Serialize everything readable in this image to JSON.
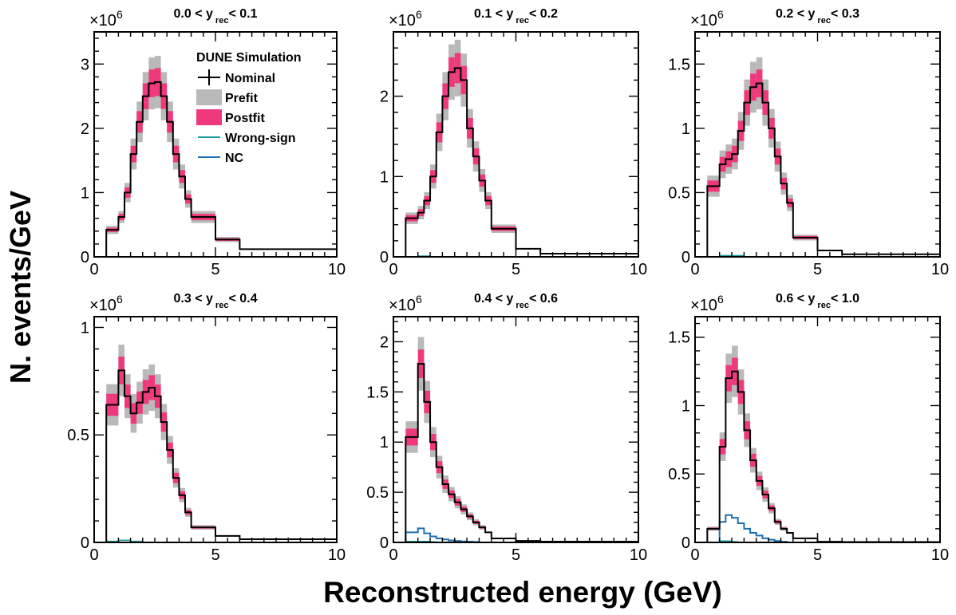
{
  "figure": {
    "ylabel": "N. events/GeV",
    "xlabel": "Reconstructed energy (GeV)",
    "exponent_base": "×10",
    "exponent_power": "6"
  },
  "legend": {
    "title": "DUNE Simulation",
    "entries": [
      {
        "label": "Nominal",
        "kind": "marker",
        "color": "#000000"
      },
      {
        "label": "Prefit",
        "kind": "box",
        "color": "#b9b9b9"
      },
      {
        "label": "Postfit",
        "kind": "box",
        "color": "#ee3a7c"
      },
      {
        "label": "Wrong-sign",
        "kind": "line",
        "color": "#1a9e9e"
      },
      {
        "label": "NC",
        "kind": "line",
        "color": "#1f6fb0"
      }
    ]
  },
  "colors": {
    "nominal": "#000000",
    "prefit": "#b9b9b9",
    "postfit": "#ee3a7c",
    "wrong_sign": "#1a9e9e",
    "nc": "#1f6fb0"
  },
  "chart_data": [
    {
      "type": "line",
      "title_pre": "0.0 < y",
      "title_sub": "rec",
      "title_post": "< 0.1",
      "xlim": [
        0,
        10
      ],
      "ylim": [
        0,
        3.5
      ],
      "xticks": [
        "0",
        "5",
        "10"
      ],
      "xtick_values": [
        0,
        5,
        10
      ],
      "yticks": [
        "0",
        "1",
        "2",
        "3"
      ],
      "ytick_values": [
        0,
        1,
        2,
        3
      ],
      "bin_edges": [
        0.5,
        1.0,
        1.25,
        1.5,
        1.75,
        2.0,
        2.25,
        2.5,
        2.75,
        3.0,
        3.25,
        3.5,
        3.75,
        4.0,
        5.0,
        6.0,
        10.0
      ],
      "nominal": [
        0.42,
        0.62,
        1.0,
        1.6,
        2.1,
        2.5,
        2.7,
        2.72,
        2.5,
        2.1,
        1.6,
        1.25,
        0.9,
        0.62,
        0.27,
        0.12
      ],
      "wrong_sign": [
        0,
        0,
        0,
        0,
        0,
        0,
        0,
        0,
        0,
        0,
        0,
        0,
        0,
        0,
        0,
        0
      ],
      "nc": [
        0,
        0,
        0,
        0,
        0,
        0,
        0,
        0,
        0,
        0,
        0,
        0,
        0,
        0,
        0,
        0
      ]
    },
    {
      "type": "line",
      "title_pre": "0.1 < y",
      "title_sub": "rec",
      "title_post": "< 0.2",
      "xlim": [
        0,
        10
      ],
      "ylim": [
        0,
        2.8
      ],
      "xticks": [
        "0",
        "5",
        "10"
      ],
      "xtick_values": [
        0,
        5,
        10
      ],
      "yticks": [
        "0",
        "1",
        "2"
      ],
      "ytick_values": [
        0,
        1,
        2
      ],
      "bin_edges": [
        0.5,
        1.0,
        1.25,
        1.5,
        1.75,
        2.0,
        2.25,
        2.5,
        2.75,
        3.0,
        3.25,
        3.5,
        3.75,
        4.0,
        5.0,
        6.0,
        10.0
      ],
      "nominal": [
        0.48,
        0.55,
        0.7,
        1.0,
        1.55,
        2.0,
        2.3,
        2.35,
        2.2,
        1.6,
        1.25,
        0.95,
        0.7,
        0.35,
        0.1,
        0.04
      ],
      "wrong_sign": [
        0,
        0.01,
        0.01,
        0,
        0,
        0,
        0,
        0,
        0,
        0,
        0,
        0,
        0,
        0,
        0,
        0
      ],
      "nc": [
        0,
        0,
        0,
        0,
        0,
        0,
        0,
        0,
        0,
        0,
        0,
        0,
        0,
        0,
        0,
        0
      ]
    },
    {
      "type": "line",
      "title_pre": "0.2 < y",
      "title_sub": "rec",
      "title_post": "< 0.3",
      "xlim": [
        0,
        10
      ],
      "ylim": [
        0,
        1.75
      ],
      "xticks": [
        "0",
        "5",
        "10"
      ],
      "xtick_values": [
        0,
        5,
        10
      ],
      "yticks": [
        "0",
        "0.5",
        "1",
        "1.5"
      ],
      "ytick_values": [
        0,
        0.5,
        1,
        1.5
      ],
      "bin_edges": [
        0.5,
        1.0,
        1.25,
        1.5,
        1.75,
        2.0,
        2.25,
        2.5,
        2.75,
        3.0,
        3.25,
        3.5,
        3.75,
        4.0,
        5.0,
        6.0,
        10.0
      ],
      "nominal": [
        0.55,
        0.72,
        0.76,
        0.8,
        0.98,
        1.2,
        1.32,
        1.35,
        1.2,
        1.0,
        0.78,
        0.57,
        0.42,
        0.15,
        0.05,
        0.02
      ],
      "wrong_sign": [
        0,
        0.01,
        0.01,
        0.01,
        0.01,
        0,
        0,
        0,
        0,
        0,
        0,
        0,
        0,
        0,
        0,
        0
      ],
      "nc": [
        0,
        0,
        0,
        0,
        0,
        0,
        0,
        0,
        0,
        0,
        0,
        0,
        0,
        0,
        0,
        0
      ]
    },
    {
      "type": "line",
      "title_pre": "0.3 < y",
      "title_sub": "rec",
      "title_post": "< 0.4",
      "xlim": [
        0,
        10
      ],
      "ylim": [
        0,
        1.05
      ],
      "xticks": [
        "0",
        "5",
        "10"
      ],
      "xtick_values": [
        0,
        5,
        10
      ],
      "yticks": [
        "0",
        "0.5",
        "1"
      ],
      "ytick_values": [
        0,
        0.5,
        1
      ],
      "bin_edges": [
        0.5,
        1.0,
        1.25,
        1.5,
        1.75,
        2.0,
        2.25,
        2.5,
        2.75,
        3.0,
        3.25,
        3.5,
        3.75,
        4.0,
        5.0,
        6.0,
        10.0
      ],
      "nominal": [
        0.64,
        0.8,
        0.68,
        0.6,
        0.65,
        0.7,
        0.72,
        0.68,
        0.56,
        0.43,
        0.3,
        0.22,
        0.14,
        0.07,
        0.03,
        0.015
      ],
      "wrong_sign": [
        0.005,
        0.01,
        0.01,
        0.005,
        0.005,
        0,
        0,
        0,
        0,
        0,
        0,
        0,
        0,
        0,
        0,
        0
      ],
      "nc": [
        0,
        0,
        0,
        0,
        0,
        0,
        0,
        0,
        0,
        0,
        0,
        0,
        0,
        0,
        0,
        0
      ]
    },
    {
      "type": "line",
      "title_pre": "0.4 < y",
      "title_sub": "rec",
      "title_post": "< 0.6",
      "xlim": [
        0,
        10
      ],
      "ylim": [
        0,
        2.25
      ],
      "xticks": [
        "0",
        "5",
        "10"
      ],
      "xtick_values": [
        0,
        5,
        10
      ],
      "yticks": [
        "0",
        "0.5",
        "1",
        "1.5",
        "2"
      ],
      "ytick_values": [
        0,
        0.5,
        1,
        1.5,
        2
      ],
      "bin_edges": [
        0.5,
        1.0,
        1.25,
        1.5,
        1.75,
        2.0,
        2.25,
        2.5,
        2.75,
        3.0,
        3.25,
        3.5,
        3.75,
        4.0,
        5.0,
        6.0,
        10.0
      ],
      "nominal": [
        1.05,
        1.78,
        1.4,
        1.0,
        0.75,
        0.58,
        0.48,
        0.4,
        0.33,
        0.26,
        0.2,
        0.15,
        0.1,
        0.04,
        0.015,
        0.008
      ],
      "wrong_sign": [
        0.01,
        0.01,
        0.01,
        0.005,
        0,
        0,
        0,
        0,
        0,
        0,
        0,
        0,
        0,
        0,
        0,
        0
      ],
      "nc": [
        0.1,
        0.14,
        0.09,
        0.06,
        0.04,
        0.03,
        0.02,
        0.015,
        0.01,
        0.008,
        0.005,
        0,
        0,
        0,
        0,
        0
      ]
    },
    {
      "type": "line",
      "title_pre": "0.6 < y",
      "title_sub": "rec",
      "title_post": "< 1.0",
      "xlim": [
        0,
        10
      ],
      "ylim": [
        0,
        1.65
      ],
      "xticks": [
        "0",
        "5",
        "10"
      ],
      "xtick_values": [
        0,
        5,
        10
      ],
      "yticks": [
        "0",
        "0.5",
        "1",
        "1.5"
      ],
      "ytick_values": [
        0,
        0.5,
        1,
        1.5
      ],
      "bin_edges": [
        0.5,
        1.0,
        1.25,
        1.5,
        1.75,
        2.0,
        2.25,
        2.5,
        2.75,
        3.0,
        3.25,
        3.5,
        3.75,
        4.0,
        5.0,
        6.0,
        10.0
      ],
      "nominal": [
        0.1,
        0.7,
        1.2,
        1.25,
        1.1,
        0.82,
        0.6,
        0.45,
        0.35,
        0.25,
        0.15,
        0.1,
        0.07,
        0.03,
        0.005,
        0.003
      ],
      "wrong_sign": [
        0,
        0.01,
        0.01,
        0.005,
        0,
        0,
        0,
        0,
        0,
        0,
        0,
        0,
        0,
        0,
        0,
        0
      ],
      "nc": [
        0,
        0.15,
        0.2,
        0.18,
        0.14,
        0.1,
        0.07,
        0.05,
        0.03,
        0.02,
        0.01,
        0.005,
        0,
        0,
        0,
        0
      ]
    }
  ]
}
